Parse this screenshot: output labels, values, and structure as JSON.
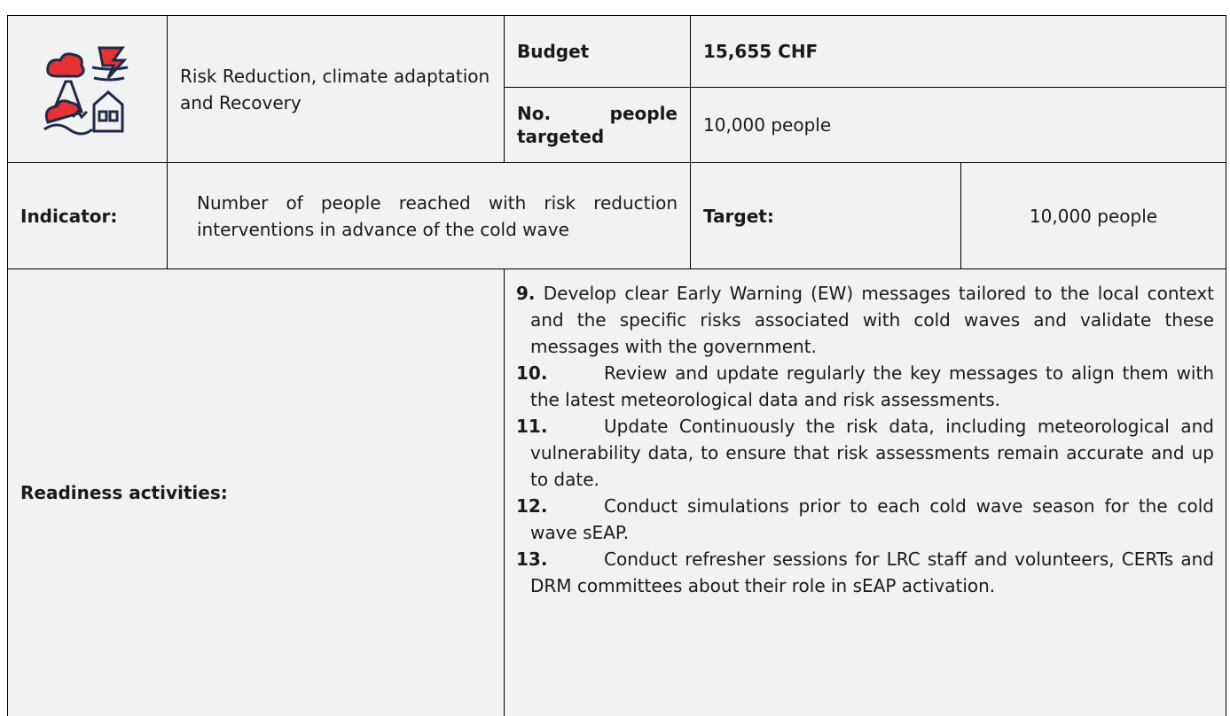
{
  "header": {
    "category": "Risk Reduction, climate adaptation and Recovery",
    "budget_label": "Budget",
    "budget_value": "15,655 CHF",
    "people_label": "No. people targeted",
    "people_value": "10,000 people"
  },
  "indicator": {
    "label": "Indicator:",
    "text": "Number of people reached with risk reduction interventions in advance of the cold wave",
    "target_label": "Target:",
    "target_value": "10,000 people"
  },
  "readiness": {
    "label": "Readiness activities:",
    "items": [
      {
        "number": "9.",
        "text": "Develop clear Early Warning (EW) messages tailored to the local context and the specific risks associated with cold waves and validate these messages with the government."
      },
      {
        "number": "10.",
        "text": "Review and update regularly the key messages to align them with the latest meteorological data and risk assessments."
      },
      {
        "number": "11.",
        "text": "Update Continuously the risk data, including meteorological and vulnerability data, to ensure that risk assessments remain accurate and up to date."
      },
      {
        "number": "12.",
        "text": "Conduct simulations prior to each cold wave season for the cold wave sEAP."
      },
      {
        "number": "13.",
        "text": "Conduct refresher sessions for LRC staff and volunteers, CERTs and DRM committees about their role in sEAP activation."
      }
    ]
  }
}
